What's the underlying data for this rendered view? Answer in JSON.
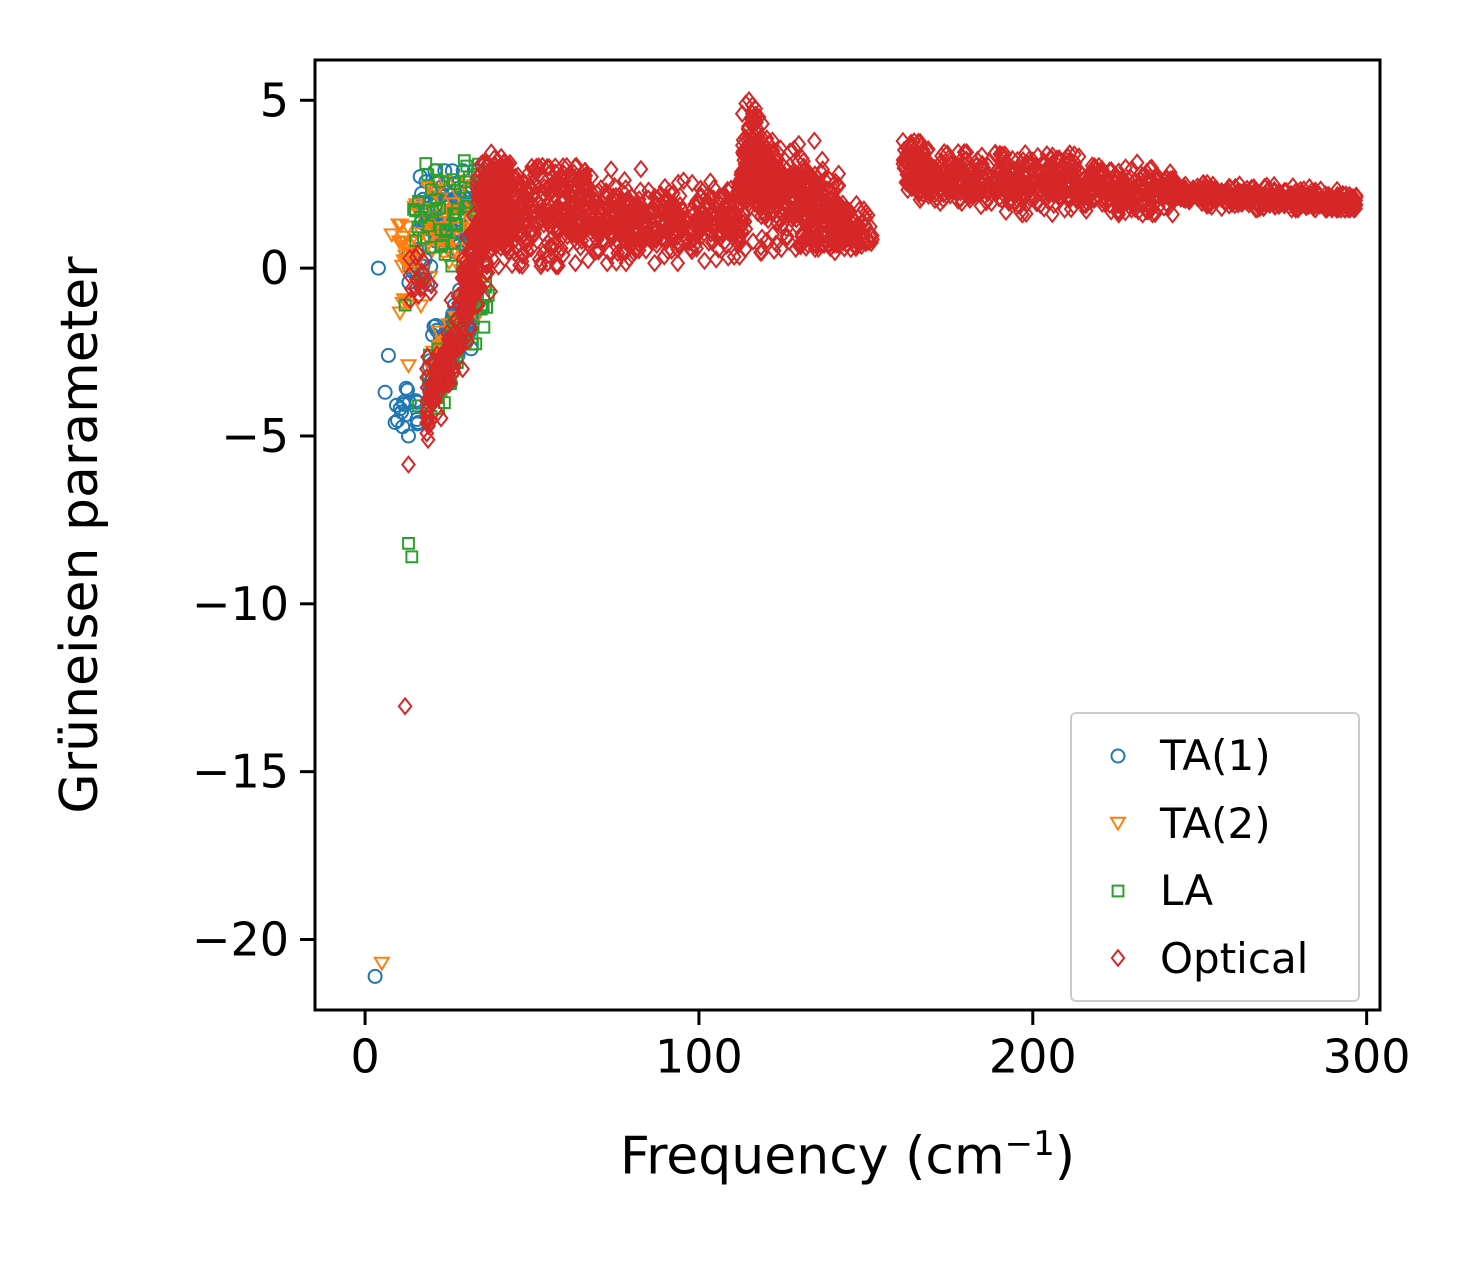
{
  "chart_data": {
    "type": "scatter",
    "title": "",
    "xlabel_main": "Frequency (cm",
    "xlabel_sup": "−1",
    "xlabel_close": ")",
    "ylabel": "Grüneisen parameter",
    "xlim": [
      -15,
      304
    ],
    "ylim": [
      -22.1,
      6.2
    ],
    "xticks": [
      {
        "v": 0,
        "label": "0"
      },
      {
        "v": 100,
        "label": "100"
      },
      {
        "v": 200,
        "label": "200"
      },
      {
        "v": 300,
        "label": "300"
      }
    ],
    "yticks": [
      {
        "v": 5,
        "label": "5"
      },
      {
        "v": 0,
        "label": "0"
      },
      {
        "v": -5,
        "label": "−5"
      },
      {
        "v": -10,
        "label": "−10"
      },
      {
        "v": -15,
        "label": "−15"
      },
      {
        "v": -20,
        "label": "−20"
      }
    ],
    "grid": false,
    "legend": {
      "loc": "lower right"
    },
    "series": [
      {
        "name": "TA(1)",
        "marker": "circle",
        "color": "#1f77b4",
        "clusters": [
          {
            "type": "normal",
            "n": 90,
            "x": [
              16,
              34
            ],
            "center": [
              1.5,
              1.9
            ],
            "sigma": 0.7,
            "clamp": [
              -0.4,
              2.9
            ]
          },
          {
            "type": "line",
            "n": 120,
            "x": [
              19,
              33
            ],
            "y": [
              -3.3,
              -0.9
            ],
            "jitter": 0.55
          },
          {
            "type": "uniform",
            "n": 16,
            "x": [
              8,
              16
            ],
            "y": [
              -5.0,
              -3.4
            ]
          },
          {
            "type": "uniform",
            "n": 14,
            "x": [
              13,
              20
            ],
            "y": [
              -0.6,
              0.8
            ]
          }
        ],
        "points": [
          [
            4,
            0.0
          ],
          [
            3,
            -21.1
          ],
          [
            7,
            -2.6
          ],
          [
            6,
            -3.7
          ],
          [
            9,
            -4.6
          ],
          [
            13,
            -5.0
          ]
        ]
      },
      {
        "name": "TA(2)",
        "marker": "triangle-down",
        "color": "#ff7f0e",
        "clusters": [
          {
            "type": "normal",
            "n": 70,
            "x": [
              10,
              34
            ],
            "center": [
              0.9,
              1.6
            ],
            "sigma": 0.8,
            "clamp": [
              -1.6,
              2.6
            ]
          },
          {
            "type": "line",
            "n": 70,
            "x": [
              20,
              34
            ],
            "y": [
              -3.1,
              -0.7
            ],
            "jitter": 0.5
          },
          {
            "type": "uniform",
            "n": 10,
            "x": [
              10,
              17
            ],
            "y": [
              -1.4,
              0.4
            ]
          }
        ],
        "points": [
          [
            5,
            -20.7
          ],
          [
            13,
            -2.9
          ],
          [
            8,
            1.0
          ]
        ]
      },
      {
        "name": "LA",
        "marker": "square",
        "color": "#2ca02c",
        "clusters": [
          {
            "type": "normal",
            "n": 60,
            "x": [
              14,
              40
            ],
            "center": [
              1.2,
              2.2
            ],
            "sigma": 0.8,
            "clamp": [
              -0.6,
              3.2
            ]
          },
          {
            "type": "line",
            "n": 48,
            "x": [
              18,
              37
            ],
            "y": [
              -4.3,
              -0.6
            ],
            "jitter": 0.7
          }
        ],
        "points": [
          [
            13,
            -8.2
          ],
          [
            14,
            -8.6
          ],
          [
            16,
            -4.1
          ],
          [
            12,
            -1.1
          ],
          [
            34,
            3.1
          ]
        ]
      },
      {
        "name": "Optical",
        "marker": "diamond",
        "color": "#d62728",
        "clusters": [
          {
            "type": "line",
            "n": 110,
            "x": [
              18,
              33
            ],
            "y": [
              -4.4,
              -0.6
            ],
            "jitter": 0.55
          },
          {
            "type": "line",
            "n": 240,
            "x": [
              29,
              41
            ],
            "y": [
              -0.8,
              2.4
            ],
            "jitter": 0.7
          },
          {
            "type": "uniform",
            "n": 170,
            "x": [
              33,
              44
            ],
            "y": [
              0.6,
              3.2
            ]
          },
          {
            "type": "normal",
            "n": 620,
            "x": [
              42,
              114
            ],
            "center": [
              1.6,
              1.35
            ],
            "sigma": 0.55,
            "clamp": [
              0.15,
              2.95
            ]
          },
          {
            "type": "uniform",
            "n": 70,
            "x": [
              42,
              66
            ],
            "y": [
              2.2,
              3.05
            ]
          },
          {
            "type": "uniform",
            "n": 22,
            "x": [
              44,
              58
            ],
            "y": [
              0.0,
              0.8
            ]
          },
          {
            "type": "peak",
            "n": 150,
            "x": [
              111,
              124
            ],
            "apex_x": 116,
            "apex_y": 5.0,
            "base_y": 2.1
          },
          {
            "type": "normal",
            "n": 400,
            "x": [
              113,
              142
            ],
            "center": [
              2.9,
              1.5
            ],
            "sigma": 0.6,
            "clamp": [
              0.7,
              4.3
            ]
          },
          {
            "type": "normal",
            "n": 80,
            "x": [
              140,
              152
            ],
            "center": [
              1.3,
              1.0
            ],
            "sigma": 0.3,
            "clamp": [
              0.6,
              2.0
            ]
          },
          {
            "type": "uniform",
            "n": 25,
            "x": [
              116,
              146
            ],
            "y": [
              0.45,
              0.95
            ]
          },
          {
            "type": "uniform",
            "n": 55,
            "x": [
              161,
              169
            ],
            "y": [
              2.9,
              3.8
            ]
          },
          {
            "type": "normal",
            "n": 680,
            "x": [
              162,
              242
            ],
            "center": [
              2.65,
              2.3
            ],
            "sigma": 0.33,
            "clamp": [
              1.6,
              3.45
            ]
          },
          {
            "type": "uniform",
            "n": 50,
            "x": [
              188,
              214
            ],
            "y": [
              2.9,
              3.45
            ]
          },
          {
            "type": "normal",
            "n": 430,
            "x": [
              242,
              297
            ],
            "center": [
              2.25,
              1.95
            ],
            "sigma": 0.16,
            "clamp": [
              1.75,
              2.7
            ]
          },
          {
            "type": "line",
            "n": 26,
            "x": [
              18,
              30
            ],
            "y": [
              -4.2,
              -1.6
            ],
            "jitter": 0.5
          },
          {
            "type": "uniform",
            "n": 18,
            "x": [
              13,
              20
            ],
            "y": [
              -1.2,
              0.6
            ]
          }
        ],
        "points": [
          [
            13,
            -5.85
          ],
          [
            12,
            -13.05
          ],
          [
            115,
            5.0
          ],
          [
            114,
            4.9
          ],
          [
            116,
            4.85
          ],
          [
            113,
            4.6
          ],
          [
            117,
            4.75
          ],
          [
            118,
            4.5
          ],
          [
            119,
            4.3
          ],
          [
            150,
            0.75
          ],
          [
            148,
            0.7
          ],
          [
            40,
            0.05
          ],
          [
            44,
            0.1
          ],
          [
            47,
            0.2
          ],
          [
            152,
            0.85
          ]
        ]
      }
    ]
  }
}
